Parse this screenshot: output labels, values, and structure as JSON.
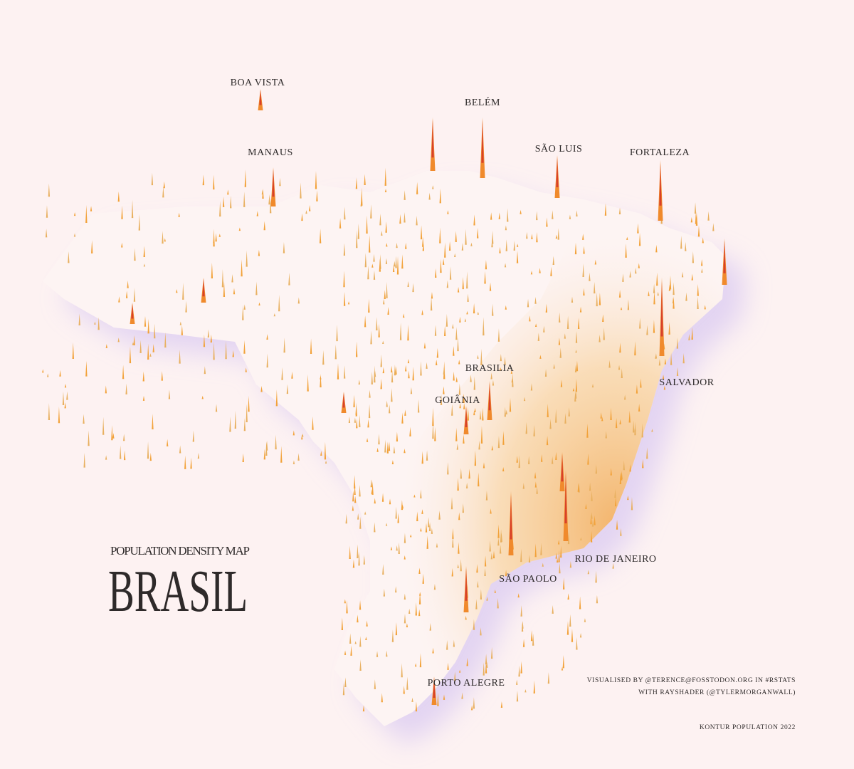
{
  "title": {
    "subtitle": "POPULATION DENSITY MAP",
    "heading": "BRASIL"
  },
  "cities": [
    {
      "label": "BOA VISTA"
    },
    {
      "label": "BELÉM"
    },
    {
      "label": "MANAUS"
    },
    {
      "label": "SÃO LUIS"
    },
    {
      "label": "FORTALEZA"
    },
    {
      "label": "BRASILIA"
    },
    {
      "label": "GOIÂNIA"
    },
    {
      "label": "SALVADOR"
    },
    {
      "label": "RIO DE JANEIRO"
    },
    {
      "label": "SÃO PAOLO"
    },
    {
      "label": "PORTO ALEGRE"
    }
  ],
  "credits": {
    "lines": [
      "VISUALISED BY @TERENCE@FOSSTODON.ORG IN #RSTATS",
      "WITH RAYSHADER (@TYLERMORGANWALL)"
    ],
    "source": "KONTUR POPULATION 2022"
  }
}
